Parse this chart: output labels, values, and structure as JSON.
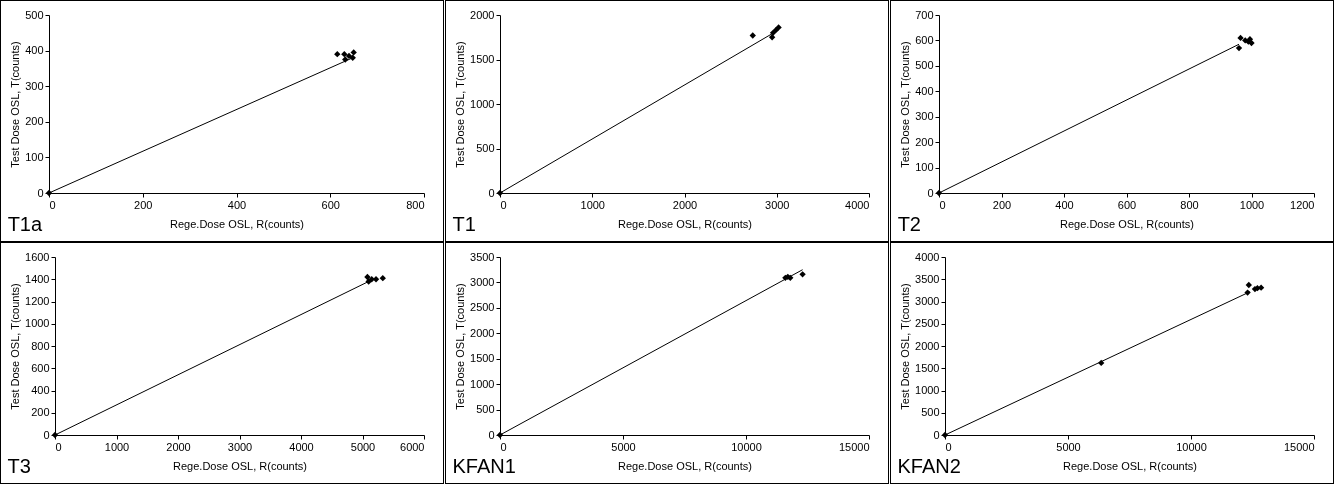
{
  "chart_data": [
    {
      "type": "scatter",
      "title": "T1a",
      "xlabel": "Rege.Dose OSL, R(counts)",
      "ylabel": "Test Dose OSL, T(counts)",
      "xlim": [
        0,
        800
      ],
      "xticks": [
        0,
        200,
        400,
        600,
        800
      ],
      "ylim": [
        0,
        500
      ],
      "yticks": [
        0,
        100,
        200,
        300,
        400,
        500
      ],
      "grid": false,
      "marker": "diamond",
      "series": [
        {
          "color": "#000000",
          "x": [
            0,
            615,
            630,
            632,
            640,
            648,
            650
          ],
          "values": [
            0,
            390,
            390,
            375,
            385,
            380,
            395
          ]
        },
        {
          "type": "line",
          "marker": "none",
          "color": "#000000",
          "x": [
            0,
            650
          ],
          "values": [
            0,
            381
          ]
        }
      ]
    },
    {
      "type": "scatter",
      "title": "T1",
      "xlabel": "Rege.Dose OSL, R(counts)",
      "ylabel": "Test Dose OSL, T(counts)",
      "xlim": [
        0,
        4000
      ],
      "xticks": [
        0,
        1000,
        2000,
        3000,
        4000
      ],
      "ylim": [
        0,
        2000
      ],
      "yticks": [
        0,
        500,
        1000,
        1500,
        2000
      ],
      "grid": false,
      "marker": "diamond",
      "series": [
        {
          "color": "#000000",
          "x": [
            0,
            2740,
            2950,
            2960,
            2990,
            3020
          ],
          "values": [
            0,
            1770,
            1750,
            1800,
            1830,
            1860
          ]
        },
        {
          "type": "line",
          "marker": "none",
          "color": "#000000",
          "x": [
            0,
            2950
          ],
          "values": [
            0,
            1790
          ]
        }
      ]
    },
    {
      "type": "scatter",
      "title": "T2",
      "xlabel": "Rege.Dose OSL, R(counts)",
      "ylabel": "Test Dose OSL, T(counts)",
      "xlim": [
        0,
        1200
      ],
      "xticks": [
        0,
        200,
        400,
        600,
        800,
        1000,
        1200
      ],
      "ylim": [
        0,
        700
      ],
      "yticks": [
        0,
        100,
        200,
        300,
        400,
        500,
        600,
        700
      ],
      "grid": false,
      "marker": "diamond",
      "series": [
        {
          "color": "#000000",
          "x": [
            0,
            960,
            965,
            980,
            990,
            995,
            1000
          ],
          "values": [
            0,
            570,
            610,
            600,
            595,
            605,
            590
          ]
        },
        {
          "type": "line",
          "marker": "none",
          "color": "#000000",
          "x": [
            0,
            960
          ],
          "values": [
            0,
            585
          ]
        }
      ]
    },
    {
      "type": "scatter",
      "title": "T3",
      "xlabel": "Rege.Dose OSL, R(counts)",
      "ylabel": "Test Dose OSL, T(counts)",
      "xlim": [
        0,
        6000
      ],
      "xticks": [
        0,
        1000,
        2000,
        3000,
        4000,
        5000,
        6000
      ],
      "ylim": [
        0,
        1600
      ],
      "yticks": [
        0,
        200,
        400,
        600,
        800,
        1000,
        1200,
        1400,
        1600
      ],
      "grid": false,
      "marker": "diamond",
      "series": [
        {
          "color": "#000000",
          "x": [
            0,
            5080,
            5100,
            5150,
            5220,
            5330
          ],
          "values": [
            0,
            1420,
            1380,
            1400,
            1400,
            1410
          ]
        },
        {
          "type": "line",
          "marker": "none",
          "color": "#000000",
          "x": [
            0,
            5100
          ],
          "values": [
            0,
            1380
          ]
        }
      ]
    },
    {
      "type": "scatter",
      "title": "KFAN1",
      "xlabel": "Rege.Dose OSL, R(counts)",
      "ylabel": "Test Dose OSL, T(counts)",
      "xlim": [
        0,
        15000
      ],
      "xticks": [
        0,
        5000,
        10000,
        15000
      ],
      "ylim": [
        0,
        3500
      ],
      "yticks": [
        0,
        500,
        1000,
        1500,
        2000,
        2500,
        3000,
        3500
      ],
      "grid": false,
      "marker": "diamond",
      "series": [
        {
          "color": "#000000",
          "x": [
            0,
            11600,
            11700,
            11800,
            12300
          ],
          "values": [
            0,
            3090,
            3110,
            3090,
            3160
          ]
        },
        {
          "type": "line",
          "marker": "none",
          "color": "#000000",
          "x": [
            0,
            12300
          ],
          "values": [
            0,
            3250
          ]
        }
      ]
    },
    {
      "type": "scatter",
      "title": "KFAN2",
      "xlabel": "Rege.Dose OSL, R(counts)",
      "ylabel": "Test Dose OSL, T(counts)",
      "xlim": [
        0,
        15000
      ],
      "xticks": [
        0,
        5000,
        10000,
        15000
      ],
      "ylim": [
        0,
        4000
      ],
      "yticks": [
        0,
        500,
        1000,
        1500,
        2000,
        2500,
        3000,
        3500,
        4000
      ],
      "grid": false,
      "marker": "diamond",
      "series": [
        {
          "color": "#000000",
          "x": [
            0,
            6350,
            12300,
            12350,
            12600,
            12700,
            12850
          ],
          "values": [
            0,
            1620,
            3200,
            3370,
            3280,
            3300,
            3310
          ]
        },
        {
          "type": "line",
          "marker": "none",
          "color": "#000000",
          "x": [
            0,
            12400
          ],
          "values": [
            0,
            3220
          ]
        }
      ]
    }
  ]
}
